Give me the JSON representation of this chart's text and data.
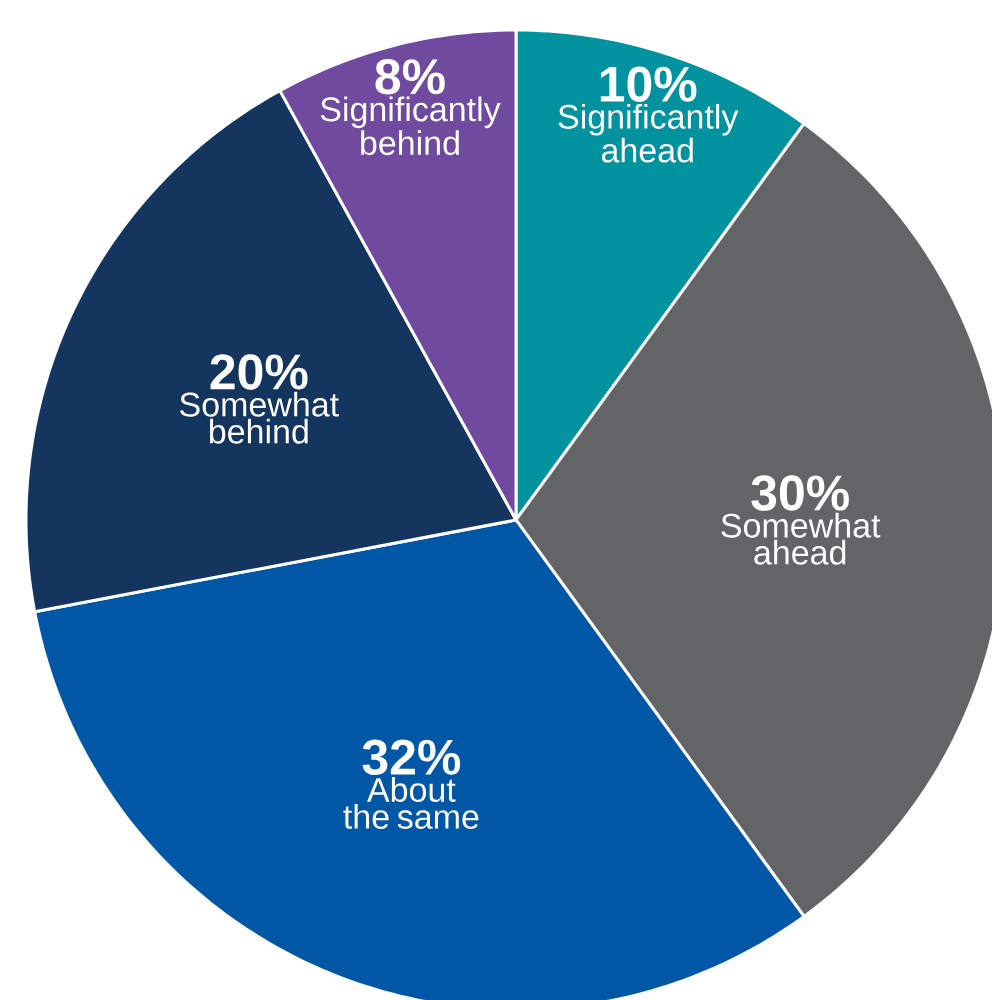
{
  "chart_data": {
    "type": "pie",
    "categories": [
      "Significantly ahead",
      "Somewhat ahead",
      "About the same",
      "Somewhat behind",
      "Significantly behind"
    ],
    "values": [
      10,
      30,
      32,
      20,
      8
    ],
    "value_labels": [
      "10%",
      "30%",
      "32%",
      "20%",
      "8%"
    ],
    "colors": [
      "#00929f",
      "#636466",
      "#0057a6",
      "#14365e",
      "#6f4a9e"
    ]
  }
}
